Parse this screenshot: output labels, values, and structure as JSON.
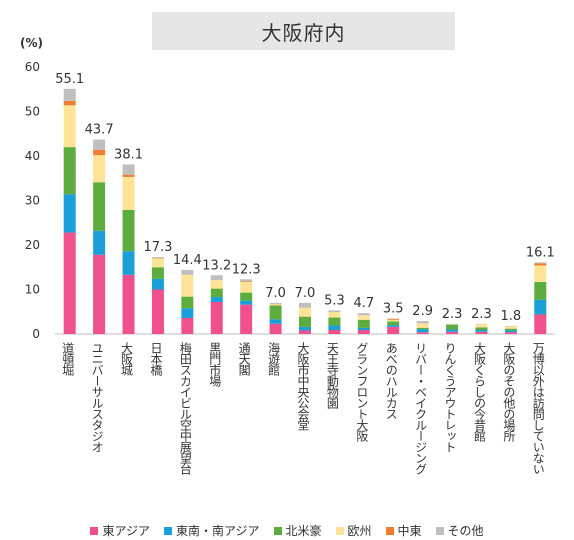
{
  "chart_data": {
    "type": "bar",
    "stacked": true,
    "title": "大阪府内",
    "ylabel": "(%)",
    "ylim": [
      0,
      60
    ],
    "yticks": [
      0,
      10,
      20,
      30,
      40,
      50,
      60
    ],
    "grid": false,
    "legend_position": "bottom",
    "categories": [
      "道頓堀",
      "ユニバーサルスタジオ",
      "大阪城",
      "日本橋",
      "梅田スカイビル空中展望台",
      "黒門市場",
      "通天閣",
      "海遊館",
      "大阪市中央公会堂",
      "天王寺動物園",
      "グランフロント大阪",
      "あべのハルカス",
      "リバー・ベイクルージング",
      "りんくうアウトレット",
      "大阪くらしの今昔館",
      "大阪のその他の場所",
      "万博以外は訪問していない"
    ],
    "totals": [
      55.1,
      43.7,
      38.1,
      17.3,
      14.4,
      13.2,
      12.3,
      7.0,
      7.0,
      5.3,
      4.7,
      3.5,
      2.9,
      2.3,
      2.3,
      1.8,
      16.1
    ],
    "total_labels": [
      "55.1",
      "43.7",
      "38.1",
      "17.3",
      "14.4",
      "13.2",
      "12.3",
      "7.0",
      "7.0",
      "5.3",
      "4.7",
      "3.5",
      "2.9",
      "2.3",
      "2.3",
      "1.8",
      "16.1"
    ],
    "series": [
      {
        "name": "東アジア",
        "color": "#f0508c",
        "values": [
          22.8,
          17.8,
          13.3,
          10.0,
          3.6,
          7.2,
          6.6,
          2.3,
          0.8,
          0.9,
          0.9,
          1.6,
          0.4,
          0.5,
          0.5,
          0.4,
          4.4
        ]
      },
      {
        "name": "東南・南アジア",
        "color": "#1a9fd9",
        "values": [
          8.6,
          5.4,
          5.3,
          2.4,
          2.2,
          1.1,
          0.9,
          1.0,
          0.8,
          1.0,
          0.5,
          0.4,
          0.7,
          0.5,
          0.4,
          0.4,
          3.3
        ]
      },
      {
        "name": "北米豪",
        "color": "#5cad3e",
        "values": [
          10.6,
          10.9,
          9.3,
          2.6,
          2.6,
          1.9,
          1.8,
          3.1,
          2.3,
          1.8,
          1.8,
          0.8,
          0.3,
          1.1,
          0.6,
          0.4,
          4.0
        ]
      },
      {
        "name": "欧州",
        "color": "#ffe497",
        "values": [
          9.4,
          6.1,
          7.4,
          2.0,
          4.9,
          1.9,
          2.4,
          0.3,
          2.0,
          1.2,
          1.0,
          0.4,
          1.0,
          0.1,
          0.7,
          0.5,
          3.7
        ]
      },
      {
        "name": "中東",
        "color": "#ee7d31",
        "values": [
          1.0,
          1.2,
          0.5,
          0.1,
          0.0,
          0.0,
          0.1,
          0.1,
          0.0,
          0.0,
          0.0,
          0.2,
          0.0,
          0.0,
          0.0,
          0.0,
          0.5
        ]
      },
      {
        "name": "その他",
        "color": "#bfbfbf",
        "values": [
          2.7,
          2.3,
          2.3,
          0.2,
          1.1,
          1.1,
          0.5,
          0.2,
          1.1,
          0.4,
          0.5,
          0.1,
          0.5,
          0.1,
          0.1,
          0.1,
          0.2
        ]
      }
    ]
  }
}
